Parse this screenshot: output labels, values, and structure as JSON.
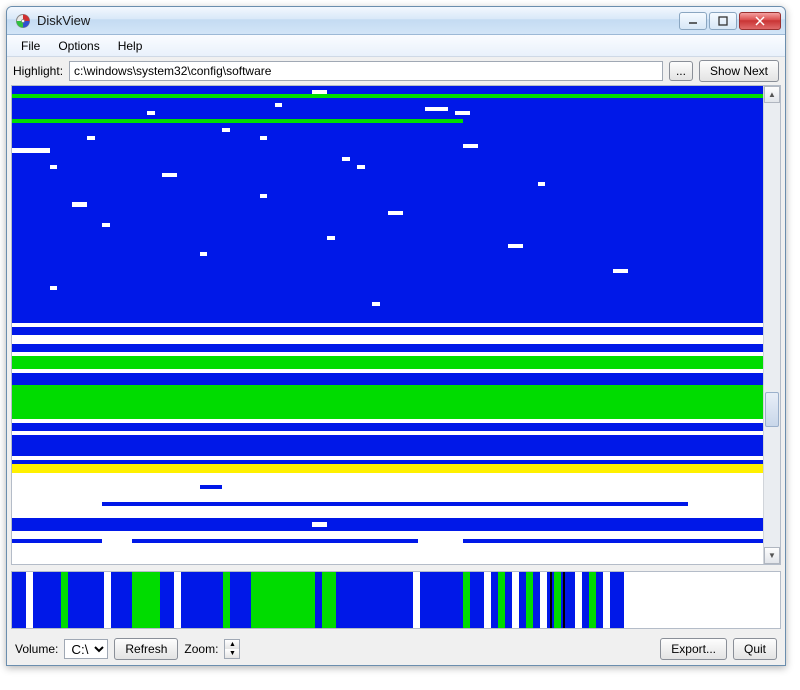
{
  "window": {
    "title": "DiskView",
    "icon_name": "diskview-icon"
  },
  "menubar": {
    "items": [
      "File",
      "Options",
      "Help"
    ]
  },
  "highlight": {
    "label": "Highlight:",
    "path": "c:\\windows\\system32\\config\\software",
    "browse_label": "...",
    "show_next_label": "Show Next"
  },
  "bottom": {
    "volume_label": "Volume:",
    "volume_value": "C:\\",
    "refresh_label": "Refresh",
    "zoom_label": "Zoom:",
    "export_label": "Export...",
    "quit_label": "Quit"
  },
  "colors": {
    "blue": "#0018e8",
    "green": "#00dc00",
    "yellow": "#fff000",
    "white": "#ffffff",
    "cyan": "#20c8d0",
    "red": "#ff2020",
    "bg": "#ffffff"
  },
  "scrollbar": {
    "thumb_top_pct": 65,
    "thumb_height_pct": 8
  },
  "disk_map": {
    "rows": [
      [
        [
          "blue",
          100
        ]
      ],
      [
        [
          "blue",
          40
        ],
        [
          "white",
          2
        ],
        [
          "blue",
          58
        ]
      ],
      [
        [
          "green",
          100
        ]
      ],
      [
        [
          "blue",
          100
        ]
      ],
      [
        [
          "blue",
          35
        ],
        [
          "white",
          1
        ],
        [
          "blue",
          64
        ]
      ],
      [
        [
          "blue",
          55
        ],
        [
          "white",
          3
        ],
        [
          "blue",
          42
        ]
      ],
      [
        [
          "blue",
          18
        ],
        [
          "white",
          1
        ],
        [
          "blue",
          40
        ],
        [
          "white",
          2
        ],
        [
          "blue",
          39
        ]
      ],
      [
        [
          "blue",
          100
        ]
      ],
      [
        [
          "green",
          60
        ],
        [
          "blue",
          40
        ]
      ],
      [
        [
          "blue",
          100
        ]
      ],
      [
        [
          "blue",
          28
        ],
        [
          "white",
          1
        ],
        [
          "blue",
          71
        ]
      ],
      [
        [
          "blue",
          100
        ]
      ],
      [
        [
          "blue",
          10
        ],
        [
          "white",
          1
        ],
        [
          "blue",
          22
        ],
        [
          "white",
          1
        ],
        [
          "blue",
          66
        ]
      ],
      [
        [
          "blue",
          100
        ]
      ],
      [
        [
          "blue",
          60
        ],
        [
          "white",
          2
        ],
        [
          "blue",
          38
        ]
      ],
      [
        [
          "white",
          5
        ],
        [
          "blue",
          95
        ]
      ],
      [
        [
          "blue",
          100
        ]
      ],
      [
        [
          "blue",
          44
        ],
        [
          "white",
          1
        ],
        [
          "blue",
          55
        ]
      ],
      [
        [
          "blue",
          100
        ]
      ],
      [
        [
          "blue",
          5
        ],
        [
          "white",
          1
        ],
        [
          "blue",
          40
        ],
        [
          "white",
          1
        ],
        [
          "blue",
          53
        ]
      ],
      [
        [
          "blue",
          100
        ]
      ],
      [
        [
          "blue",
          20
        ],
        [
          "white",
          2
        ],
        [
          "blue",
          78
        ]
      ],
      [
        [
          "blue",
          100
        ]
      ],
      [
        [
          "blue",
          70
        ],
        [
          "white",
          1
        ],
        [
          "blue",
          29
        ]
      ],
      [
        [
          "blue",
          100
        ]
      ],
      [
        [
          "blue",
          100
        ]
      ],
      [
        [
          "blue",
          33
        ],
        [
          "white",
          1
        ],
        [
          "blue",
          66
        ]
      ],
      [
        [
          "blue",
          100
        ]
      ],
      [
        [
          "blue",
          8
        ],
        [
          "white",
          2
        ],
        [
          "blue",
          90
        ]
      ],
      [
        [
          "blue",
          100
        ]
      ],
      [
        [
          "blue",
          50
        ],
        [
          "white",
          2
        ],
        [
          "blue",
          48
        ]
      ],
      [
        [
          "blue",
          100
        ]
      ],
      [
        [
          "blue",
          100
        ]
      ],
      [
        [
          "blue",
          12
        ],
        [
          "white",
          1
        ],
        [
          "blue",
          87
        ]
      ],
      [
        [
          "blue",
          100
        ]
      ],
      [
        [
          "blue",
          100
        ]
      ],
      [
        [
          "blue",
          42
        ],
        [
          "white",
          1
        ],
        [
          "blue",
          57
        ]
      ],
      [
        [
          "blue",
          100
        ]
      ],
      [
        [
          "blue",
          66
        ],
        [
          "white",
          2
        ],
        [
          "blue",
          32
        ]
      ],
      [
        [
          "blue",
          100
        ]
      ],
      [
        [
          "blue",
          25
        ],
        [
          "white",
          1
        ],
        [
          "blue",
          74
        ]
      ],
      [
        [
          "blue",
          100
        ]
      ],
      [
        [
          "blue",
          100
        ]
      ],
      [
        [
          "blue",
          100
        ]
      ],
      [
        [
          "blue",
          80
        ],
        [
          "white",
          2
        ],
        [
          "blue",
          18
        ]
      ],
      [
        [
          "blue",
          100
        ]
      ],
      [
        [
          "blue",
          100
        ]
      ],
      [
        [
          "blue",
          100
        ]
      ],
      [
        [
          "blue",
          5
        ],
        [
          "white",
          1
        ],
        [
          "blue",
          94
        ]
      ],
      [
        [
          "blue",
          100
        ]
      ],
      [
        [
          "blue",
          100
        ]
      ],
      [
        [
          "blue",
          100
        ]
      ],
      [
        [
          "blue",
          48
        ],
        [
          "white",
          1
        ],
        [
          "blue",
          51
        ]
      ],
      [
        [
          "blue",
          100
        ]
      ],
      [
        [
          "blue",
          100
        ]
      ],
      [
        [
          "blue",
          100
        ]
      ],
      [
        [
          "blue",
          100
        ]
      ],
      [
        [
          "white",
          100
        ]
      ],
      [
        [
          "blue",
          100
        ]
      ],
      [
        [
          "blue",
          100
        ]
      ],
      [
        [
          "white",
          100
        ]
      ],
      [
        [
          "white",
          100
        ]
      ],
      [
        [
          "blue",
          100
        ]
      ],
      [
        [
          "blue",
          100
        ]
      ],
      [
        [
          "white",
          100
        ]
      ],
      [
        [
          "green",
          100
        ]
      ],
      [
        [
          "green",
          100
        ]
      ],
      [
        [
          "green",
          100
        ]
      ],
      [
        [
          "white",
          100
        ]
      ],
      [
        [
          "blue",
          100
        ]
      ],
      [
        [
          "blue",
          100
        ]
      ],
      [
        [
          "blue",
          100
        ]
      ],
      [
        [
          "green",
          100
        ]
      ],
      [
        [
          "green",
          100
        ]
      ],
      [
        [
          "green",
          100
        ]
      ],
      [
        [
          "green",
          100
        ]
      ],
      [
        [
          "green",
          100
        ]
      ],
      [
        [
          "green",
          100
        ]
      ],
      [
        [
          "green",
          100
        ]
      ],
      [
        [
          "green",
          100
        ]
      ],
      [
        [
          "white",
          100
        ]
      ],
      [
        [
          "blue",
          100
        ]
      ],
      [
        [
          "blue",
          100
        ]
      ],
      [
        [
          "white",
          100
        ]
      ],
      [
        [
          "blue",
          100
        ]
      ],
      [
        [
          "blue",
          100
        ]
      ],
      [
        [
          "blue",
          100
        ]
      ],
      [
        [
          "blue",
          100
        ]
      ],
      [
        [
          "blue",
          100
        ]
      ],
      [
        [
          "white",
          100
        ]
      ],
      [
        [
          "blue",
          100
        ]
      ],
      [
        [
          "yellow",
          100
        ]
      ],
      [
        [
          "yellow",
          100
        ]
      ],
      [
        [
          "white",
          100
        ]
      ],
      [
        [
          "white",
          100
        ]
      ],
      [
        [
          "white",
          100
        ]
      ],
      [
        [
          "white",
          25
        ],
        [
          "blue",
          3
        ],
        [
          "white",
          72
        ]
      ],
      [
        [
          "white",
          100
        ]
      ],
      [
        [
          "white",
          100
        ]
      ],
      [
        [
          "white",
          100
        ]
      ],
      [
        [
          "white",
          12
        ],
        [
          "blue",
          78
        ],
        [
          "white",
          10
        ]
      ],
      [
        [
          "white",
          100
        ]
      ],
      [
        [
          "white",
          100
        ]
      ],
      [
        [
          "white",
          100
        ]
      ],
      [
        [
          "blue",
          100
        ]
      ],
      [
        [
          "blue",
          40
        ],
        [
          "white",
          2
        ],
        [
          "blue",
          58
        ]
      ],
      [
        [
          "blue",
          100
        ]
      ],
      [
        [
          "white",
          100
        ]
      ],
      [
        [
          "white",
          100
        ]
      ],
      [
        [
          "blue",
          12
        ],
        [
          "white",
          4
        ],
        [
          "blue",
          38
        ],
        [
          "white",
          6
        ],
        [
          "blue",
          40
        ]
      ],
      [
        [
          "white",
          100
        ]
      ],
      [
        [
          "white",
          100
        ]
      ],
      [
        [
          "white",
          100
        ]
      ],
      [
        [
          "white",
          100
        ]
      ],
      [
        [
          "white",
          100
        ]
      ]
    ]
  },
  "overview": {
    "segments": [
      [
        "blue",
        2
      ],
      [
        "white",
        1
      ],
      [
        "blue",
        4
      ],
      [
        "green",
        1
      ],
      [
        "blue",
        5
      ],
      [
        "white",
        1
      ],
      [
        "blue",
        3
      ],
      [
        "green",
        4
      ],
      [
        "blue",
        2
      ],
      [
        "white",
        1
      ],
      [
        "blue",
        6
      ],
      [
        "green",
        1
      ],
      [
        "blue",
        3
      ],
      [
        "green",
        9
      ],
      [
        "blue",
        1
      ],
      [
        "green",
        2
      ],
      [
        "blue",
        8
      ],
      [
        "blue",
        3
      ],
      [
        "white",
        1
      ],
      [
        "blue",
        6
      ],
      [
        "green",
        1
      ],
      [
        "blue",
        2
      ],
      [
        "white",
        1
      ],
      [
        "blue",
        1
      ],
      [
        "green",
        1
      ],
      [
        "blue",
        1
      ],
      [
        "white",
        1
      ],
      [
        "blue",
        1
      ],
      [
        "green",
        1
      ],
      [
        "blue",
        1
      ],
      [
        "white",
        1
      ],
      [
        "blue",
        1
      ],
      [
        "green",
        1
      ],
      [
        "blue",
        2
      ],
      [
        "white",
        1
      ],
      [
        "blue",
        1
      ],
      [
        "green",
        1
      ],
      [
        "blue",
        1
      ],
      [
        "white",
        1
      ],
      [
        "blue",
        2
      ],
      [
        "white",
        22
      ]
    ],
    "viewport_marker": {
      "left_pct": 70,
      "width_pct": 2
    }
  }
}
